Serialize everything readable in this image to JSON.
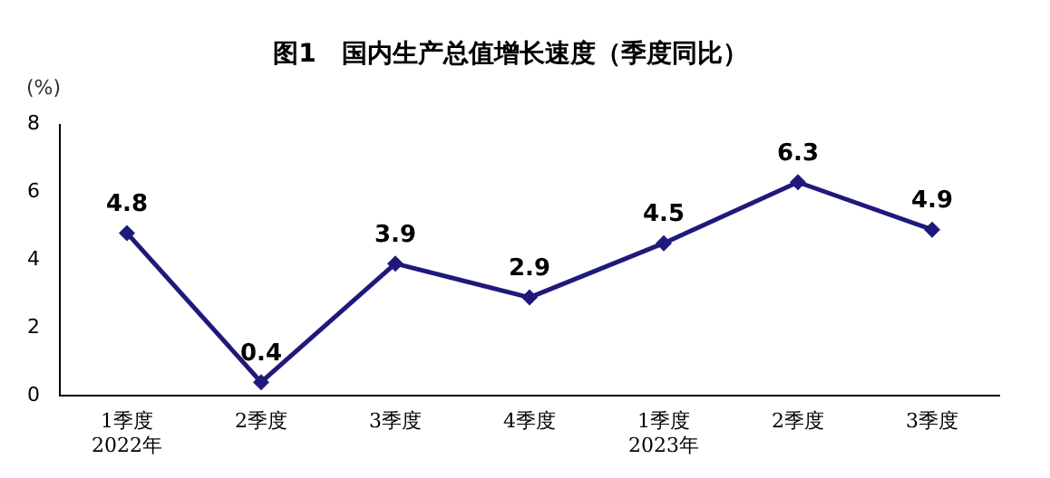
{
  "chart_data": {
    "type": "line",
    "title": "图1　国内生产总值增长速度（季度同比）",
    "ylabel": "(%)",
    "categories": [
      "1季度\n2022年",
      "2季度",
      "3季度",
      "4季度",
      "1季度\n2023年",
      "2季度",
      "3季度"
    ],
    "series": [
      {
        "color": "#1f1a7a",
        "values": [
          4.8,
          0.4,
          3.9,
          2.9,
          4.5,
          6.3,
          4.9
        ]
      }
    ],
    "ylim": [
      0,
      8
    ],
    "yticks": [
      0,
      2,
      4,
      6,
      8
    ],
    "grid": false,
    "legend": false,
    "marker": "diamond",
    "line_style": "solid",
    "data_labels": true
  }
}
